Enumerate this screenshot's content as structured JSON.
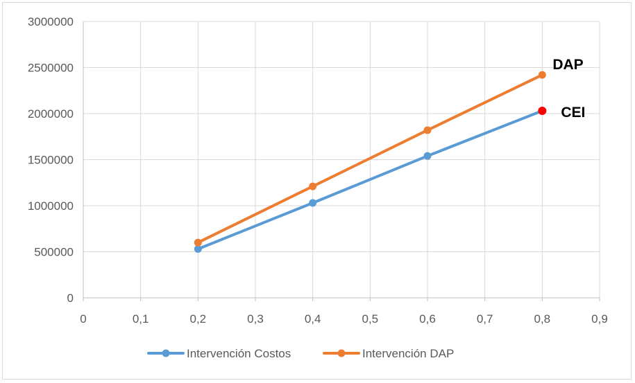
{
  "chart_data": {
    "type": "line",
    "title": "",
    "xlabel": "",
    "ylabel": "",
    "xlim": [
      0,
      0.9
    ],
    "ylim": [
      0,
      3000000
    ],
    "x_ticks": [
      0,
      0.1,
      0.2,
      0.3,
      0.4,
      0.5,
      0.6,
      0.7,
      0.8,
      0.9
    ],
    "x_tick_labels": [
      "0",
      "0,1",
      "0,2",
      "0,3",
      "0,4",
      "0,5",
      "0,6",
      "0,7",
      "0,8",
      "0,9"
    ],
    "y_ticks": [
      0,
      500000,
      1000000,
      1500000,
      2000000,
      2500000,
      3000000
    ],
    "y_tick_labels": [
      "0",
      "500000",
      "1000000",
      "1500000",
      "2000000",
      "2500000",
      "3000000"
    ],
    "grid": true,
    "legend_position": "bottom",
    "series": [
      {
        "name": "Intervención Costos",
        "color": "#5b9bd5",
        "x": [
          0.2,
          0.4,
          0.6,
          0.8
        ],
        "y": [
          530000,
          1030000,
          1540000,
          2030000
        ]
      },
      {
        "name": "Intervención DAP",
        "color": "#ed7d31",
        "x": [
          0.2,
          0.4,
          0.6,
          0.8
        ],
        "y": [
          600000,
          1210000,
          1820000,
          2420000
        ]
      }
    ],
    "annotations": [
      {
        "text": "DAP",
        "x": 0.8,
        "y": 2420000
      },
      {
        "text": "CEI",
        "x": 0.8,
        "y": 2030000,
        "marker_color": "#ff0000"
      }
    ]
  }
}
